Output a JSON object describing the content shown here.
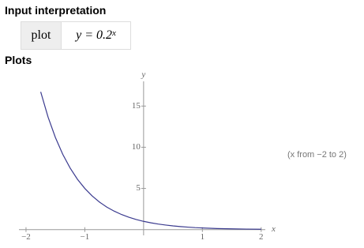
{
  "input_interpretation": {
    "heading": "Input interpretation",
    "command": "plot",
    "expression": "y = 0.2",
    "exponent": "x"
  },
  "plots": {
    "heading": "Plots",
    "note": "(x from −2 to 2)"
  },
  "chart_data": {
    "type": "line",
    "x_label": "x",
    "y_label": "y",
    "x": [
      -1.75,
      -1.625,
      -1.5,
      -1.375,
      -1.25,
      -1.125,
      -1,
      -0.875,
      -0.75,
      -0.625,
      -0.5,
      -0.375,
      -0.25,
      -0.125,
      0,
      0.125,
      0.25,
      0.375,
      0.5,
      0.625,
      0.75,
      0.875,
      1,
      1.25,
      1.5,
      1.75,
      2
    ],
    "series": [
      {
        "name": "y = 0.2^x",
        "color": "#3b3b8f",
        "values": [
          16.72,
          13.67,
          11.18,
          9.14,
          7.48,
          6.11,
          5,
          4.09,
          3.34,
          2.73,
          2.24,
          1.83,
          1.5,
          1.22,
          1,
          0.82,
          0.67,
          0.55,
          0.45,
          0.37,
          0.3,
          0.24,
          0.2,
          0.13,
          0.09,
          0.06,
          0.04
        ]
      }
    ],
    "xlim": [
      -2.12,
      2.07
    ],
    "ylim": [
      -0.7,
      18
    ],
    "xticks": [
      {
        "value": -2,
        "label": "−2"
      },
      {
        "value": -1,
        "label": "−1"
      },
      1,
      2
    ],
    "yticks": [
      5,
      10,
      15
    ]
  }
}
